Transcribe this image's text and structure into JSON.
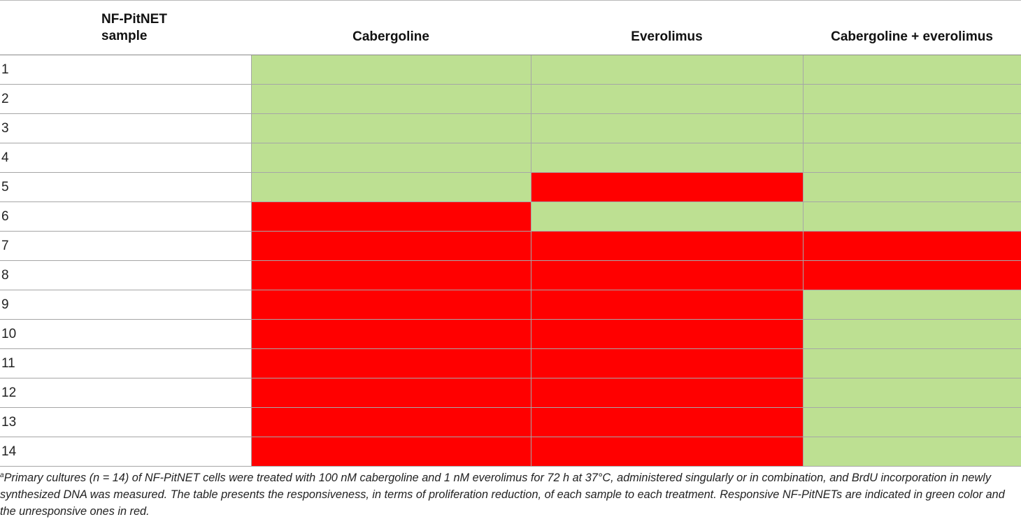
{
  "table": {
    "headers": {
      "sample_line1": "NF-PitNET",
      "sample_line2": "sample",
      "col1": "Cabergoline",
      "col2": "Everolimus",
      "col3": "Cabergoline + everolimus"
    },
    "legend_colors": {
      "responsive": "#bde092",
      "unresponsive": "#ff0000"
    },
    "rows": [
      {
        "sample": "1",
        "response": [
          "responsive",
          "responsive",
          "responsive"
        ]
      },
      {
        "sample": "2",
        "response": [
          "responsive",
          "responsive",
          "responsive"
        ]
      },
      {
        "sample": "3",
        "response": [
          "responsive",
          "responsive",
          "responsive"
        ]
      },
      {
        "sample": "4",
        "response": [
          "responsive",
          "responsive",
          "responsive"
        ]
      },
      {
        "sample": "5",
        "response": [
          "responsive",
          "unresponsive",
          "responsive"
        ]
      },
      {
        "sample": "6",
        "response": [
          "unresponsive",
          "responsive",
          "responsive"
        ]
      },
      {
        "sample": "7",
        "response": [
          "unresponsive",
          "unresponsive",
          "unresponsive"
        ]
      },
      {
        "sample": "8",
        "response": [
          "unresponsive",
          "unresponsive",
          "unresponsive"
        ]
      },
      {
        "sample": "9",
        "response": [
          "unresponsive",
          "unresponsive",
          "responsive"
        ]
      },
      {
        "sample": "10",
        "response": [
          "unresponsive",
          "unresponsive",
          "responsive"
        ]
      },
      {
        "sample": "11",
        "response": [
          "unresponsive",
          "unresponsive",
          "responsive"
        ]
      },
      {
        "sample": "12",
        "response": [
          "unresponsive",
          "unresponsive",
          "responsive"
        ]
      },
      {
        "sample": "13",
        "response": [
          "unresponsive",
          "unresponsive",
          "responsive"
        ]
      },
      {
        "sample": "14",
        "response": [
          "unresponsive",
          "unresponsive",
          "responsive"
        ]
      }
    ]
  },
  "footnote": {
    "marker": "a",
    "text": "Primary cultures (n = 14) of NF-PitNET cells were treated with 100 nM cabergoline and 1 nM everolimus for 72 h at 37°C, administered singularly or in combination, and BrdU incorporation in newly synthesized DNA was measured. The table presents the responsiveness, in terms of proliferation reduction, of each sample to each treatment. Responsive NF-PitNETs are indicated in green color and the unresponsive ones in red."
  }
}
